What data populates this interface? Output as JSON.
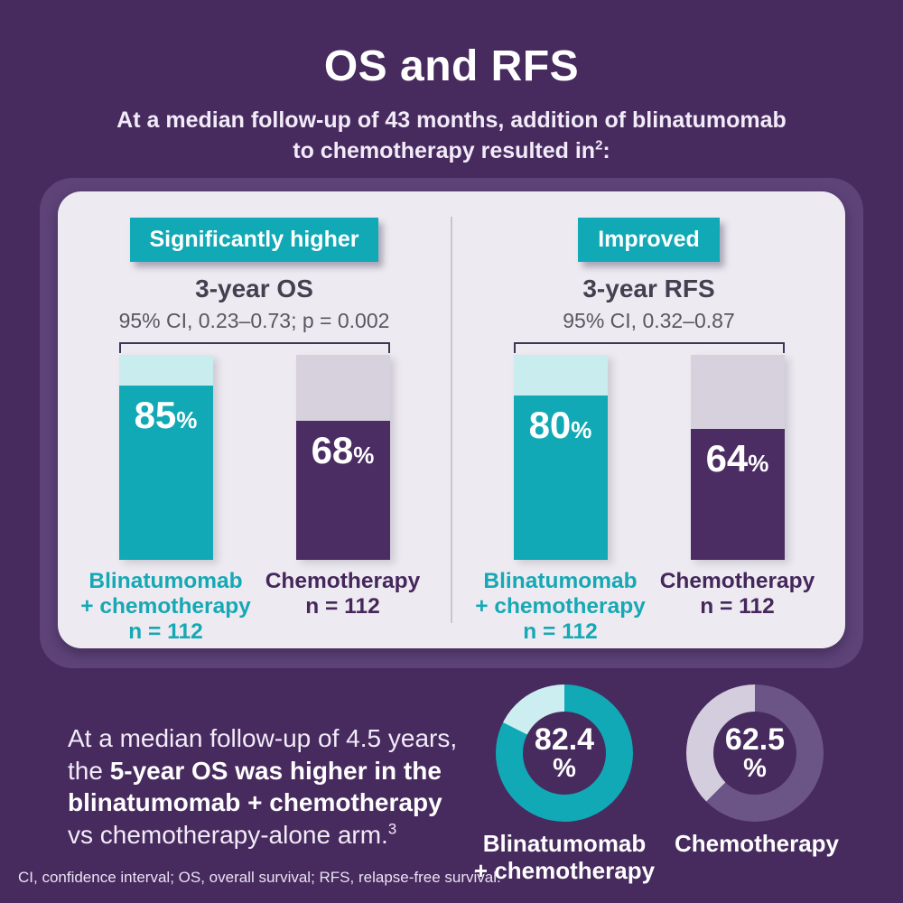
{
  "colors": {
    "page_bg": "#472a5e",
    "ring": "#5e4379",
    "card_bg": "#edebf1",
    "teal": "#10a9b5",
    "teal_pale": "#c9ecef",
    "purple_bar": "#4b2c63",
    "purple_pale": "#d6d1dc",
    "donut_purple": "#6b5587"
  },
  "header": {
    "title": "OS and RFS",
    "subtitle_line1": "At a median follow-up of 43 months, addition of blinatumomab",
    "subtitle_line2": "to chemotherapy resulted in",
    "subtitle_sup": "2",
    "subtitle_colon": ":"
  },
  "panels": [
    {
      "badge": "Significantly higher",
      "title": "3-year OS",
      "ci": "95% CI, 0.23–0.73; p = 0.002",
      "bars": [
        {
          "value": 85,
          "display": "85",
          "unit": "%",
          "label_line1": "Blinatumomab",
          "label_line2": "+ chemotherapy",
          "n": "n = 112"
        },
        {
          "value": 68,
          "display": "68",
          "unit": "%",
          "label_line1": "Chemotherapy",
          "n": "n = 112"
        }
      ]
    },
    {
      "badge": "Improved",
      "title": "3-year RFS",
      "ci": "95% CI, 0.32–0.87",
      "bars": [
        {
          "value": 80,
          "display": "80",
          "unit": "%",
          "label_line1": "Blinatumomab",
          "label_line2": "+ chemotherapy",
          "n": "n = 112"
        },
        {
          "value": 64,
          "display": "64",
          "unit": "%",
          "label_line1": "Chemotherapy",
          "n": "n = 112"
        }
      ]
    }
  ],
  "bottom": {
    "line1": "At a median follow-up of 4.5 years,",
    "line2_regular": "the ",
    "line2_bold": "5-year OS was higher in the",
    "line3_bold": "blinatumomab + chemotherapy",
    "line4": "vs chemotherapy-alone arm.",
    "line4_sup": "3"
  },
  "donuts": [
    {
      "value": 82.4,
      "display": "82.4",
      "unit": "%",
      "label_line1": "Blinatumomab",
      "label_line2": "+ chemotherapy",
      "fill_color": "#10a9b5",
      "rest_color": "#cdeef1"
    },
    {
      "value": 62.5,
      "display": "62.5",
      "unit": "%",
      "label_line1": "Chemotherapy",
      "label_line2": "",
      "fill_color": "#6b5587",
      "rest_color": "#d4cddd"
    }
  ],
  "footnote": "CI, confidence interval; OS, overall survival; RFS, relapse-free survival.",
  "chart_data": [
    {
      "type": "bar",
      "title": "3-year OS",
      "subtitle": "95% CI, 0.23–0.73; p = 0.002",
      "badge": "Significantly higher",
      "categories": [
        "Blinatumomab + chemotherapy (n = 112)",
        "Chemotherapy (n = 112)"
      ],
      "values": [
        85,
        68
      ],
      "unit": "%",
      "ylim": [
        0,
        100
      ],
      "colors": [
        "#10a9b5",
        "#4b2c63"
      ]
    },
    {
      "type": "bar",
      "title": "3-year RFS",
      "subtitle": "95% CI, 0.32–0.87",
      "badge": "Improved",
      "categories": [
        "Blinatumomab + chemotherapy (n = 112)",
        "Chemotherapy (n = 112)"
      ],
      "values": [
        80,
        64
      ],
      "unit": "%",
      "ylim": [
        0,
        100
      ],
      "colors": [
        "#10a9b5",
        "#4b2c63"
      ]
    },
    {
      "type": "pie",
      "subtype": "donut",
      "title": "5-year OS — Blinatumomab + chemotherapy",
      "categories": [
        "5-year OS",
        "remainder"
      ],
      "values": [
        82.4,
        17.6
      ],
      "unit": "%",
      "colors": [
        "#10a9b5",
        "#cdeef1"
      ]
    },
    {
      "type": "pie",
      "subtype": "donut",
      "title": "5-year OS — Chemotherapy",
      "categories": [
        "5-year OS",
        "remainder"
      ],
      "values": [
        62.5,
        37.5
      ],
      "unit": "%",
      "colors": [
        "#6b5587",
        "#d4cddd"
      ]
    }
  ]
}
